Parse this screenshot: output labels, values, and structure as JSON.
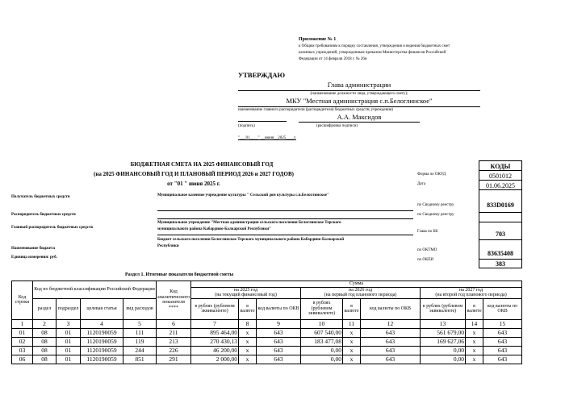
{
  "appendix": {
    "title": "Приложение № 1",
    "text1": "к Общим требованиям к порядку составления, утверждения и ведения бюджетных смет",
    "text2": " казенных учреждений, утвержденным приказом Министерства финансов Российской",
    "text3": "Федерации  от 14 февраля 2018 г. № 26н"
  },
  "approve": {
    "heading": "УТВЕРЖДАЮ",
    "position": "Глава администрации",
    "position_caption": "(наименование должности лица, утверждающего смету);",
    "org": "МКУ \"Местная администрация с.п.Белоглинское\"",
    "org_caption": "наименование главного распорядителя (распорядителя) бюджетных средств; учреждения)",
    "signer": "А.А. Максидов",
    "sign_caption": "(подпись)",
    "decode_caption": "(расшифровка подписи)",
    "date": "\"___01____\" __июня__2025____г."
  },
  "title": {
    "line1": "БЮДЖЕТНАЯ СМЕТА НА 2025  ФИНАНСОВЫЙ ГОД",
    "line2": "(на 2025  ФИНАНСОВЫЙ ГОД И ПЛАНОВЫЙ ПЕРИОД  2026 и 2027 ГОДОВ)",
    "line3": "от \"01 \" июня 2025 г."
  },
  "codes": {
    "header": "КОДЫ",
    "okud": "0501012",
    "date": "01.06.2025",
    "reestr1": "833D0169",
    "reestr2": "",
    "glava": "703",
    "oktmo": "83635408",
    "okei": "383"
  },
  "code_labels": {
    "okud": "Форма по ОКУД",
    "date": "Дата",
    "reestr1": "по Сводному реестру",
    "reestr2": "по Сводному реестру",
    "glava": "Глава по БК",
    "oktmo": "по ОКТМО",
    "okei": "по ОКЕИ"
  },
  "fields": {
    "recipient_label": "Получатель бюджетных средств",
    "recipient": "Муниципальное казенное учреждение культуры \" Сельский дом культуры с.п.Белоглинское\"",
    "manager_label": "Распорядитель бюджетных средств",
    "chief_label": "Главный распорядитель бюджетных средств",
    "chief1": "Муниципальное  учреждение \"Местная администрация сельского поселения Белоглинское Терского",
    "chief2": "муниципального района Кабардино-Балкарской Республики\"",
    "budget_label": "Наименование бюджета",
    "budget1": "Бюджет сельского поселения Белоглинское Терского  муниципального района Кабардино-Балкарской",
    "budget2": "Республики",
    "unit_label": "Единица измерения: руб."
  },
  "section": {
    "title": "Раздел 1. Итоговые показатели бюджетной сметы"
  },
  "table": {
    "h_code": "Код строки",
    "h_bk": "Код по бюджетной классификации Российской Федерации",
    "h_an": "Код аналитического показателя ****",
    "h_sum": "Сумма",
    "h_y1": "на 2025 год",
    "h_y1b": "(на текущий финансовый год)",
    "h_y2": "на 2026 год",
    "h_y2b": "(на первый год планового периода)",
    "h_y3": "на 2027 год",
    "h_y3b": "(на второй год планового периода)",
    "h_razdel": "раздел",
    "h_podr": "подраздел",
    "h_cel": "целевая статья",
    "h_vid": "вид расходов",
    "h_rub": "в рублях (рублевом эквиваленте)",
    "h_val": "в валюте",
    "h_okv": "код валюты по ОКВ",
    "nums": [
      "1",
      "2",
      "3",
      "4",
      "5",
      "6",
      "7",
      "8",
      "9",
      "10",
      "11",
      "12",
      "13",
      "14",
      "15"
    ],
    "rows": [
      [
        "01",
        "08",
        "01",
        "1120190059",
        "111",
        "211",
        "895 464,00",
        "x",
        "643",
        "607 540,00",
        "x",
        "643",
        "561 679,00",
        "x",
        "643"
      ],
      [
        "02",
        "08",
        "01",
        "1120190059",
        "119",
        "213",
        "270 430,13",
        "x",
        "643",
        "183 477,08",
        "x",
        "643",
        "169 627,06",
        "x",
        "643"
      ],
      [
        "03",
        "08",
        "01",
        "1120190059",
        "244",
        "226",
        "46 200,00",
        "x",
        "643",
        "0,00",
        "x",
        "643",
        "0,00",
        "x",
        "643"
      ],
      [
        "06",
        "08",
        "01",
        "1120190059",
        "851",
        "291",
        "2 000,00",
        "x",
        "643",
        "0,00",
        "x",
        "643",
        "0,00",
        "x",
        "643"
      ]
    ]
  }
}
